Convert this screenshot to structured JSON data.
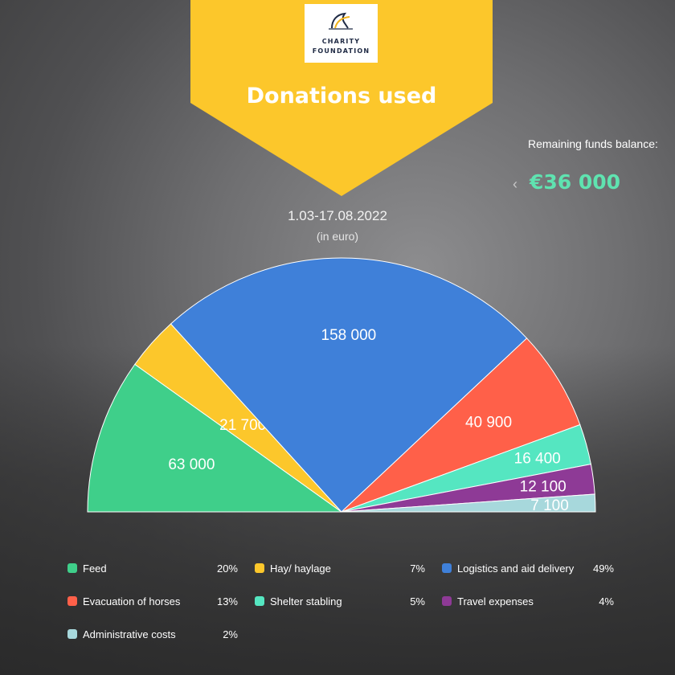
{
  "logo": {
    "line1": "CHARITY",
    "line2": "FOUNDATION"
  },
  "title": "Donations used",
  "period": "1.03-17.08.2022",
  "unit": "(in euro)",
  "remaining": {
    "label": "Remaining funds balance:",
    "value": "€36 000",
    "color": "#5fe3b0"
  },
  "colors": {
    "banner": "#fcc72b",
    "background": "#6f6f71"
  },
  "chart_data": {
    "type": "pie",
    "shape": "semicircle",
    "unit": "euro",
    "categories": [
      "Feed",
      "Hay/ haylage",
      "Logistics and aid delivery",
      "Evacuation of horses",
      "Shelter stabling",
      "Travel expenses",
      "Administrative costs"
    ],
    "values": [
      63000,
      21700,
      158000,
      40900,
      16400,
      12100,
      7100
    ],
    "value_labels": [
      "63 000",
      "21 700",
      "158 000",
      "40 900",
      "16 400",
      "12 100",
      "7 100"
    ],
    "percent_labels": [
      "20%",
      "7%",
      "49%",
      "13%",
      "5%",
      "4%",
      "2%"
    ],
    "colors": [
      "#3fcf8a",
      "#fcc72b",
      "#3f80d9",
      "#ff6049",
      "#55e6c1",
      "#8e3a96",
      "#a7d8dc"
    ],
    "legend_position": "bottom"
  }
}
